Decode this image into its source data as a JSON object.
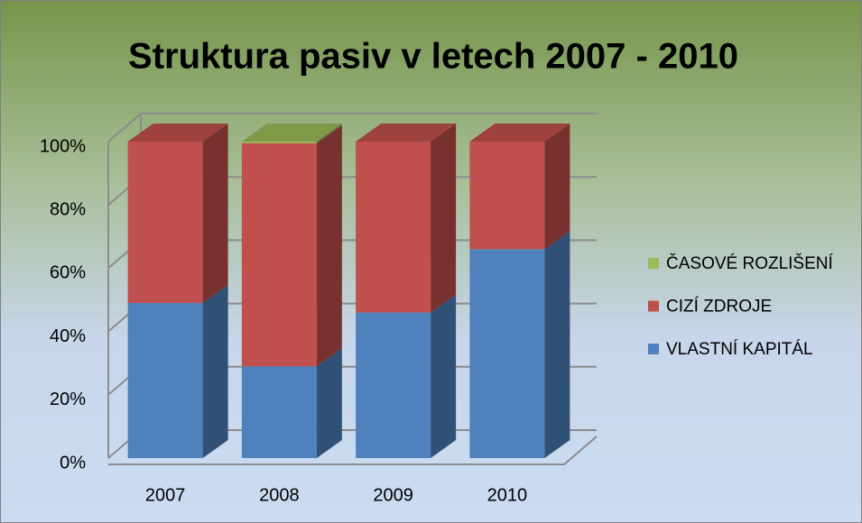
{
  "chart_data": {
    "type": "bar",
    "stacked": true,
    "title": "Struktura pasiv v letech 2007 - 2010",
    "categories": [
      "2007",
      "2008",
      "2009",
      "2010"
    ],
    "series": [
      {
        "name": "VLASTNÍ KAPITÁL",
        "color": "#4f81bd",
        "values": [
          49,
          29,
          46,
          66
        ]
      },
      {
        "name": "CIZÍ ZDROJE",
        "color": "#c0504d",
        "values": [
          51,
          70.5,
          54,
          34
        ]
      },
      {
        "name": "ČASOVÉ ROZLIŠENÍ",
        "color": "#9bbb59",
        "values": [
          0,
          0.5,
          0,
          0
        ]
      }
    ],
    "ylim": [
      0,
      100
    ],
    "yticks": [
      {
        "value": 0,
        "label": "0%"
      },
      {
        "value": 20,
        "label": "20%"
      },
      {
        "value": 40,
        "label": "40%"
      },
      {
        "value": 60,
        "label": "60%"
      },
      {
        "value": 80,
        "label": "80%"
      },
      {
        "value": 100,
        "label": "100%"
      }
    ],
    "grid": true,
    "legend": "right"
  }
}
